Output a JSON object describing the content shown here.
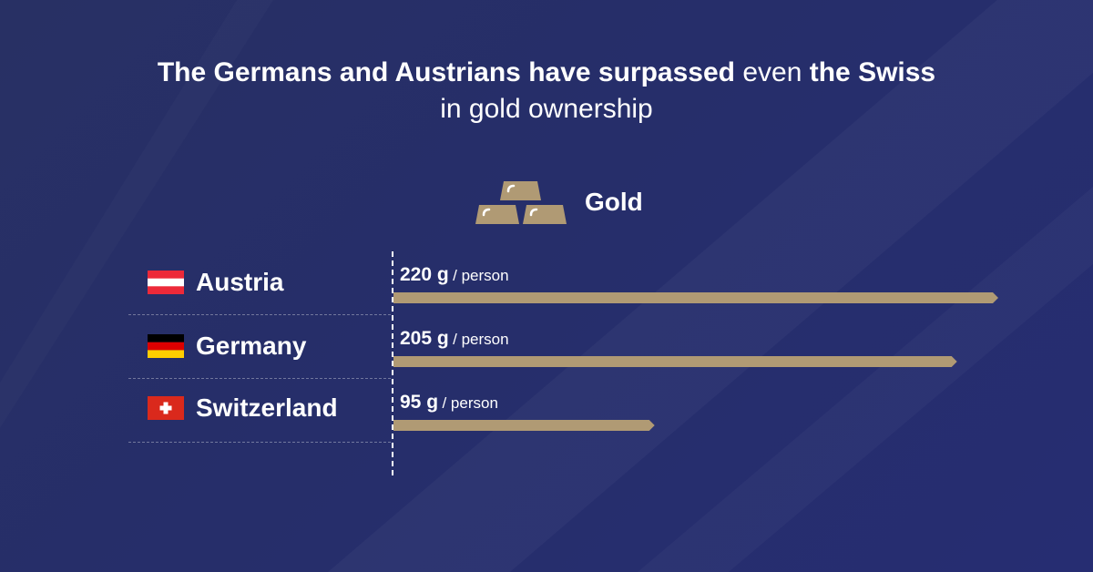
{
  "title": {
    "part1": "The Germans and Austrians have surpassed",
    "part2": "even",
    "part3": "the Swiss",
    "line2": "in gold ownership"
  },
  "legend": {
    "label": "Gold",
    "icon": "gold-bars-icon",
    "color": "#b09a74"
  },
  "colors": {
    "bar": "#b09a74",
    "background": "#262e6a"
  },
  "chart_data": {
    "type": "bar",
    "orientation": "horizontal",
    "categories": [
      "Austria",
      "Germany",
      "Switzerland"
    ],
    "series": [
      {
        "name": "Gold",
        "values": [
          220,
          205,
          95
        ]
      }
    ],
    "value_labels": [
      "220 g",
      "205 g",
      "95 g"
    ],
    "unit_label": "/ person",
    "flags": [
      "austria-flag-icon",
      "germany-flag-icon",
      "switzerland-flag-icon"
    ],
    "xlim": [
      0,
      220
    ],
    "grid": false,
    "legend_position": "top-center"
  }
}
